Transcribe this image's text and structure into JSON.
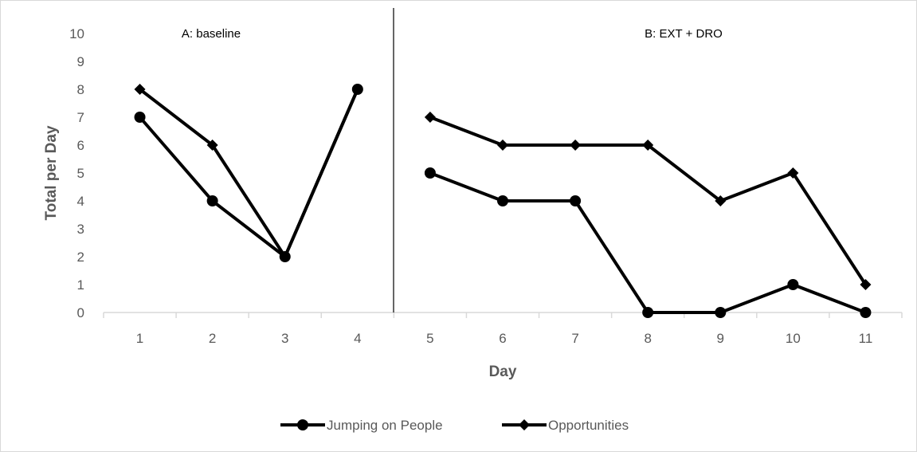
{
  "chart_data": {
    "type": "line",
    "xlabel": "Day",
    "ylabel": "Total per Day",
    "ylim": [
      0,
      10
    ],
    "yticks": [
      0,
      1,
      2,
      3,
      4,
      5,
      6,
      7,
      8,
      9,
      10
    ],
    "categories": [
      "1",
      "2",
      "3",
      "4",
      "5",
      "6",
      "7",
      "8",
      "9",
      "10",
      "11"
    ],
    "grid": false,
    "legend_position": "bottom",
    "phases": [
      {
        "label": "A: baseline",
        "days": [
          "1",
          "2",
          "3",
          "4"
        ]
      },
      {
        "label": "B: EXT + DRO",
        "days": [
          "5",
          "6",
          "7",
          "8",
          "9",
          "10",
          "11"
        ]
      }
    ],
    "series": [
      {
        "name": "Jumping on People",
        "marker": "circle",
        "color": "#000000",
        "segments": [
          [
            7,
            4,
            2,
            8
          ],
          [
            5,
            4,
            4,
            0,
            0,
            1,
            0
          ]
        ]
      },
      {
        "name": "Opportunities",
        "marker": "diamond",
        "color": "#000000",
        "segments": [
          [
            8,
            6,
            2,
            8
          ],
          [
            7,
            6,
            6,
            6,
            4,
            5,
            1
          ]
        ]
      }
    ]
  }
}
